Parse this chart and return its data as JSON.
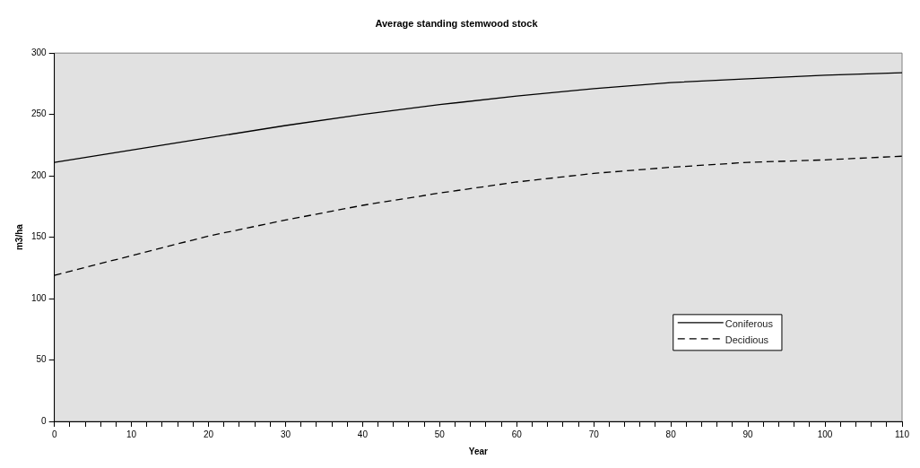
{
  "chart_data": {
    "type": "line",
    "title": "Average standing stemwood stock",
    "xlabel": "Year",
    "ylabel": "m3/ha",
    "x": [
      0,
      10,
      20,
      30,
      40,
      50,
      60,
      70,
      80,
      90,
      100,
      110
    ],
    "series": [
      {
        "name": "Coniferous",
        "color": "#000000",
        "line_style": "solid",
        "values": [
          211,
          221,
          231,
          241,
          250,
          258,
          265,
          271,
          276,
          279,
          282,
          284
        ]
      },
      {
        "name": "Decidious",
        "color": "#000000",
        "line_style": "dashed",
        "values": [
          119,
          135,
          151,
          164,
          176,
          186,
          195,
          202,
          207,
          211,
          213,
          216
        ]
      }
    ],
    "xlim": [
      0,
      110
    ],
    "xticks": [
      0,
      {
        "value": 2,
        "label": null
      },
      {
        "value": 4,
        "label": null
      },
      {
        "value": 6,
        "label": null
      },
      {
        "value": 8,
        "label": null
      },
      10,
      {
        "value": 12,
        "label": null
      },
      {
        "value": 14,
        "label": null
      },
      {
        "value": 16,
        "label": null
      },
      {
        "value": 18,
        "label": null
      },
      20,
      {
        "value": 22,
        "label": null
      },
      {
        "value": 24,
        "label": null
      },
      {
        "value": 26,
        "label": null
      },
      {
        "value": 28,
        "label": null
      },
      30,
      {
        "value": 32,
        "label": null
      },
      {
        "value": 34,
        "label": null
      },
      {
        "value": 36,
        "label": null
      },
      {
        "value": 38,
        "label": null
      },
      40,
      {
        "value": 42,
        "label": null
      },
      {
        "value": 44,
        "label": null
      },
      {
        "value": 46,
        "label": null
      },
      {
        "value": 48,
        "label": null
      },
      50,
      {
        "value": 52,
        "label": null
      },
      {
        "value": 54,
        "label": null
      },
      {
        "value": 56,
        "label": null
      },
      {
        "value": 58,
        "label": null
      },
      60,
      {
        "value": 62,
        "label": null
      },
      {
        "value": 64,
        "label": null
      },
      {
        "value": 66,
        "label": null
      },
      {
        "value": 68,
        "label": null
      },
      70,
      {
        "value": 72,
        "label": null
      },
      {
        "value": 74,
        "label": null
      },
      {
        "value": 76,
        "label": null
      },
      {
        "value": 78,
        "label": null
      },
      80,
      {
        "value": 82,
        "label": null
      },
      {
        "value": 84,
        "label": null
      },
      {
        "value": 86,
        "label": null
      },
      {
        "value": 88,
        "label": null
      },
      90,
      {
        "value": 92,
        "label": null
      },
      {
        "value": 94,
        "label": null
      },
      {
        "value": 96,
        "label": null
      },
      {
        "value": 98,
        "label": null
      },
      100,
      {
        "value": 102,
        "label": null
      },
      {
        "value": 104,
        "label": null
      },
      {
        "value": 106,
        "label": null
      },
      {
        "value": 108,
        "label": null
      },
      110
    ],
    "ylim": [
      0,
      300
    ],
    "yticks": [
      0,
      50,
      100,
      150,
      200,
      250,
      300
    ],
    "grid": false,
    "legend": "bottom right",
    "marker": "none"
  }
}
